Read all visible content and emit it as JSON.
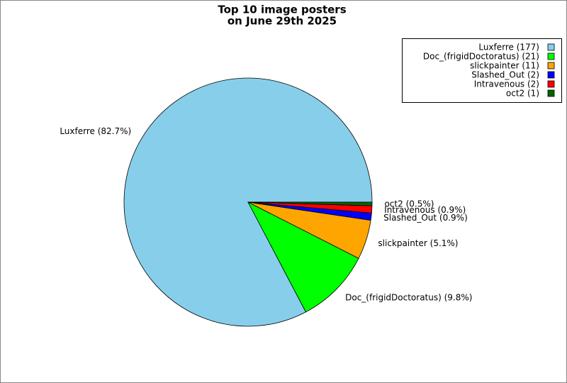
{
  "chart_data": {
    "type": "pie",
    "title": [
      "Top 10 image posters",
      "on June 29th 2025"
    ],
    "categories": [
      "Luxferre",
      "Doc_(frigidDoctoratus)",
      "slickpainter",
      "Slashed_Out",
      "Intravenous",
      "oct2"
    ],
    "values": [
      177,
      21,
      11,
      2,
      2,
      1
    ],
    "legend_labels": [
      "Luxferre (177)",
      "Doc_(frigidDoctoratus) (21)",
      "slickpainter (11)",
      "Slashed_Out (2)",
      "Intravenous (2)",
      "oct2 (1)"
    ],
    "value_labels": [
      "Luxferre (82.7%)",
      "Doc_(frigidDoctoratus) (9.8%)",
      "slickpainter (5.1%)",
      "Slashed_Out (0.9%)",
      "Intravenous (0.9%)",
      "oct2 (0.5%)"
    ],
    "colors": [
      "#87ceeb",
      "#00ff00",
      "#ffa500",
      "#0000ff",
      "#ff0000",
      "#006400"
    ],
    "legend": "upper right"
  }
}
